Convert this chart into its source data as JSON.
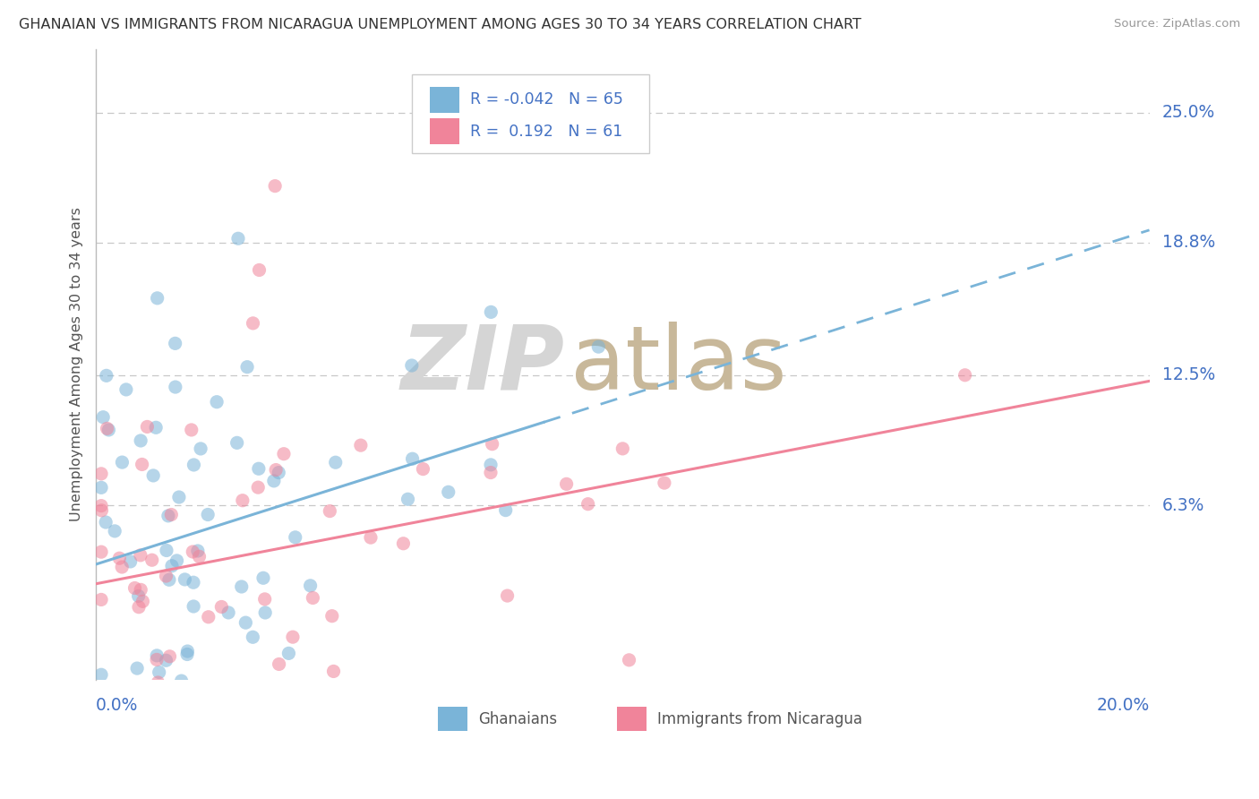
{
  "title": "GHANAIAN VS IMMIGRANTS FROM NICARAGUA UNEMPLOYMENT AMONG AGES 30 TO 34 YEARS CORRELATION CHART",
  "source": "Source: ZipAtlas.com",
  "ylabel": "Unemployment Among Ages 30 to 34 years",
  "xlim": [
    0.0,
    0.2
  ],
  "ylim": [
    -0.02,
    0.28
  ],
  "yticks": [
    0.063,
    0.125,
    0.188,
    0.25
  ],
  "ytick_labels": [
    "6.3%",
    "12.5%",
    "18.8%",
    "25.0%"
  ],
  "color_blue": "#7ab4d8",
  "color_pink": "#f0849a",
  "r1": -0.042,
  "n1": 65,
  "r2": 0.192,
  "n2": 61,
  "watermark_zip_color": "#d5d5d5",
  "watermark_atlas_color": "#c8b89a",
  "background_color": "#ffffff",
  "grid_color": "#c8c8c8",
  "title_color": "#333333",
  "tick_label_color": "#4472c4",
  "ylabel_color": "#555555",
  "legend_r1_text": "R = -0.042",
  "legend_n1_text": "N = 65",
  "legend_r2_text": "R =  0.192",
  "legend_n2_text": "N = 61",
  "source_color": "#999999",
  "bottom_legend_color": "#555555"
}
